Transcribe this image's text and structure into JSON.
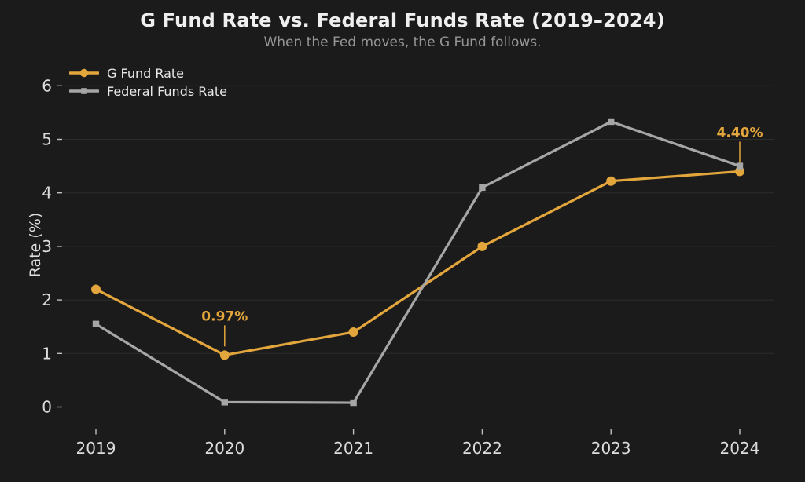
{
  "chart_data": {
    "type": "line",
    "title": "G Fund Rate vs. Federal Funds Rate (2019–2024)",
    "subtitle": "When the Fed moves, the G Fund follows.",
    "xlabel": "",
    "ylabel": "Rate (%)",
    "categories": [
      "2019",
      "2020",
      "2021",
      "2022",
      "2023",
      "2024"
    ],
    "yticks": [
      0,
      1,
      2,
      3,
      4,
      5,
      6
    ],
    "ylim": [
      0,
      6
    ],
    "grid": true,
    "legend_position": "top-left",
    "series": [
      {
        "name": "G Fund Rate",
        "marker": "circle",
        "color": "#E3A63C",
        "values": [
          2.2,
          0.97,
          1.4,
          3.0,
          4.22,
          4.4
        ]
      },
      {
        "name": "Federal Funds Rate",
        "marker": "square",
        "color": "#A6A6A6",
        "values": [
          1.55,
          0.09,
          0.08,
          4.1,
          5.33,
          4.5
        ]
      }
    ],
    "annotations": [
      {
        "series": "G Fund Rate",
        "x": "2020",
        "value": 0.97,
        "label": "0.97%"
      },
      {
        "series": "G Fund Rate",
        "x": "2024",
        "value": 4.4,
        "label": "4.40%"
      }
    ],
    "colors": {
      "background": "#1B1B1B",
      "grid": "#2D2D2D",
      "tick_mark": "#C0C0C0",
      "tick_text": "#DCDCDC",
      "title_text": "#EFEFEF",
      "subtitle_text": "#969696",
      "legend_text": "#E8E8E8",
      "accent": "#E3A63C"
    }
  }
}
